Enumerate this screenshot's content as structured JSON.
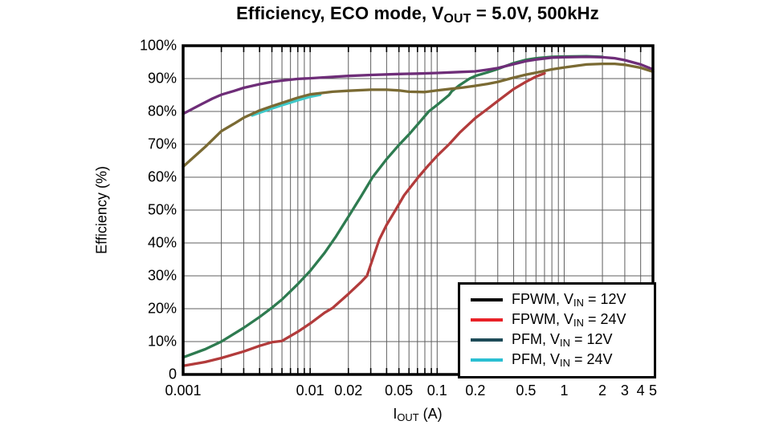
{
  "page": {
    "background": "#ffffff"
  },
  "title": {
    "pre": "Efficiency, ECO mode, V",
    "sub": "OUT",
    "post": " = 5.0V, 500kHz"
  },
  "chart_data": {
    "type": "line",
    "x_axis": {
      "label_pre": "I",
      "label_sub": "OUT",
      "label_post": " (A)",
      "scale": "log",
      "min": 0.001,
      "max": 5,
      "tick_labels": [
        {
          "value": 0.001,
          "label": "0.001"
        },
        {
          "value": 0.01,
          "label": "0.01"
        },
        {
          "value": 0.02,
          "label": "0.02"
        },
        {
          "value": 0.05,
          "label": "0.05"
        },
        {
          "value": 0.1,
          "label": "0.1"
        },
        {
          "value": 0.2,
          "label": "0.2"
        },
        {
          "value": 0.5,
          "label": "0.5"
        },
        {
          "value": 1,
          "label": "1"
        },
        {
          "value": 2,
          "label": "2"
        },
        {
          "value": 3,
          "label": "3"
        },
        {
          "value": 4,
          "label": "4"
        },
        {
          "value": 5,
          "label": "5"
        }
      ]
    },
    "y_axis": {
      "label": "Efficiency (%)",
      "min": 0,
      "max": 100,
      "tick_step": 10,
      "tick_labels": [
        "100%",
        "90%",
        "80%",
        "70%",
        "60%",
        "50%",
        "40%",
        "30%",
        "20%",
        "10%",
        "0"
      ]
    },
    "grid": {
      "color": "#5f5f5f",
      "border_color": "#000000",
      "tick_color": "#000000"
    },
    "legend": {
      "position": "bottom-right",
      "entries": [
        {
          "pre": "FPWM, V",
          "sub": "IN",
          "post": " = 12V",
          "color": "#000000"
        },
        {
          "pre": "FPWM, V",
          "sub": "IN",
          "post": " = 24V",
          "color": "#e82228"
        },
        {
          "pre": "PFM, V",
          "sub": "IN",
          "post": " = 12V",
          "color": "#1e4b58"
        },
        {
          "pre": "PFM, V",
          "sub": "IN",
          "post": " = 24V",
          "color": "#2bbfd2"
        }
      ]
    },
    "series": [
      {
        "name": "PFM, VIN = 24V (visible cyan light-load segment)",
        "slug": "pfm-vin-24v-cyan-segment",
        "color": "#3fc8c8",
        "points": [
          [
            0.0035,
            78.8
          ],
          [
            0.004,
            79.6
          ],
          [
            0.005,
            80.9
          ],
          [
            0.006,
            81.9
          ],
          [
            0.008,
            83.4
          ],
          [
            0.01,
            84.5
          ],
          [
            0.012,
            85.1
          ]
        ]
      },
      {
        "name": "FPWM, VIN = 12V",
        "slug": "fpwm-vin-12v",
        "color": "#2e7b50",
        "points": [
          [
            0.001,
            5.2
          ],
          [
            0.0015,
            7.7
          ],
          [
            0.002,
            10.0
          ],
          [
            0.003,
            14.2
          ],
          [
            0.004,
            17.5
          ],
          [
            0.005,
            20.3
          ],
          [
            0.006,
            22.8
          ],
          [
            0.008,
            27.5
          ],
          [
            0.01,
            31.5
          ],
          [
            0.013,
            37.0
          ],
          [
            0.016,
            42.0
          ],
          [
            0.02,
            48.0
          ],
          [
            0.025,
            54.0
          ],
          [
            0.031,
            60.0
          ],
          [
            0.04,
            65.5
          ],
          [
            0.05,
            69.8
          ],
          [
            0.06,
            73.0
          ],
          [
            0.07,
            76.0
          ],
          [
            0.086,
            80.0
          ],
          [
            0.1,
            82.0
          ],
          [
            0.124,
            85.0
          ],
          [
            0.13,
            86.1
          ],
          [
            0.15,
            88.0
          ],
          [
            0.18,
            90.0
          ],
          [
            0.2,
            90.8
          ],
          [
            0.25,
            91.9
          ],
          [
            0.3,
            92.9
          ],
          [
            0.35,
            93.9
          ],
          [
            0.4,
            94.7
          ],
          [
            0.5,
            95.7
          ],
          [
            0.6,
            96.2
          ],
          [
            0.8,
            96.6
          ],
          [
            1.0,
            96.7
          ],
          [
            1.5,
            96.8
          ],
          [
            2.0,
            96.6
          ]
        ]
      },
      {
        "name": "FPWM, VIN = 24V",
        "slug": "fpwm-vin-24v",
        "color": "#b23b3b",
        "points": [
          [
            0.001,
            2.6
          ],
          [
            0.0015,
            3.8
          ],
          [
            0.002,
            5.0
          ],
          [
            0.003,
            7.0
          ],
          [
            0.004,
            8.7
          ],
          [
            0.005,
            9.8
          ],
          [
            0.006,
            10.2
          ],
          [
            0.008,
            13.0
          ],
          [
            0.01,
            15.5
          ],
          [
            0.013,
            18.8
          ],
          [
            0.015,
            20.2
          ],
          [
            0.02,
            24.5
          ],
          [
            0.025,
            28.0
          ],
          [
            0.028,
            30.0
          ],
          [
            0.035,
            41.0
          ],
          [
            0.04,
            45.5
          ],
          [
            0.047,
            50.0
          ],
          [
            0.055,
            54.5
          ],
          [
            0.071,
            60.0
          ],
          [
            0.085,
            63.5
          ],
          [
            0.1,
            66.5
          ],
          [
            0.124,
            70.0
          ],
          [
            0.15,
            73.5
          ],
          [
            0.2,
            78.0
          ],
          [
            0.25,
            80.8
          ],
          [
            0.3,
            83.2
          ],
          [
            0.4,
            86.8
          ],
          [
            0.5,
            89.0
          ],
          [
            0.6,
            90.6
          ],
          [
            0.7,
            91.6
          ]
        ]
      },
      {
        "name": "PFM, VIN = 24V",
        "slug": "pfm-vin-24v",
        "color": "#7a6a33",
        "points": [
          [
            0.001,
            63.2
          ],
          [
            0.0015,
            69.3
          ],
          [
            0.002,
            74.0
          ],
          [
            0.0025,
            76.2
          ],
          [
            0.003,
            78.1
          ],
          [
            0.004,
            80.3
          ],
          [
            0.005,
            81.6
          ],
          [
            0.006,
            82.6
          ],
          [
            0.008,
            84.2
          ],
          [
            0.01,
            85.2
          ],
          [
            0.015,
            86.0
          ],
          [
            0.02,
            86.3
          ],
          [
            0.03,
            86.6
          ],
          [
            0.04,
            86.6
          ],
          [
            0.05,
            86.4
          ],
          [
            0.06,
            86.0
          ],
          [
            0.08,
            85.9
          ],
          [
            0.1,
            86.4
          ],
          [
            0.13,
            86.9
          ],
          [
            0.16,
            87.3
          ],
          [
            0.2,
            87.8
          ],
          [
            0.25,
            88.4
          ],
          [
            0.3,
            89.0
          ],
          [
            0.4,
            90.3
          ],
          [
            0.5,
            91.2
          ],
          [
            0.6,
            91.8
          ],
          [
            0.8,
            92.8
          ],
          [
            1.0,
            93.4
          ],
          [
            1.5,
            94.3
          ],
          [
            2.0,
            94.5
          ],
          [
            2.5,
            94.5
          ],
          [
            3.0,
            94.2
          ],
          [
            4.0,
            93.3
          ],
          [
            5.0,
            92.1
          ]
        ]
      },
      {
        "name": "PFM, VIN = 12V",
        "slug": "pfm-vin-12v",
        "color": "#6e2d78",
        "points": [
          [
            0.001,
            79.3
          ],
          [
            0.0013,
            81.6
          ],
          [
            0.0017,
            83.9
          ],
          [
            0.002,
            85.1
          ],
          [
            0.0025,
            86.2
          ],
          [
            0.003,
            87.2
          ],
          [
            0.004,
            88.3
          ],
          [
            0.005,
            89.0
          ],
          [
            0.006,
            89.4
          ],
          [
            0.008,
            89.9
          ],
          [
            0.01,
            90.1
          ],
          [
            0.015,
            90.5
          ],
          [
            0.02,
            90.8
          ],
          [
            0.03,
            91.1
          ],
          [
            0.05,
            91.4
          ],
          [
            0.07,
            91.5
          ],
          [
            0.1,
            91.7
          ],
          [
            0.15,
            92.0
          ],
          [
            0.2,
            92.2
          ],
          [
            0.25,
            92.7
          ],
          [
            0.3,
            93.2
          ],
          [
            0.4,
            94.4
          ],
          [
            0.5,
            95.3
          ],
          [
            0.6,
            95.8
          ],
          [
            0.8,
            96.4
          ],
          [
            1.0,
            96.5
          ],
          [
            1.5,
            96.6
          ],
          [
            2.0,
            96.5
          ],
          [
            2.5,
            96.2
          ],
          [
            3.0,
            95.6
          ],
          [
            4.0,
            94.3
          ],
          [
            5.0,
            92.8
          ]
        ]
      }
    ]
  }
}
